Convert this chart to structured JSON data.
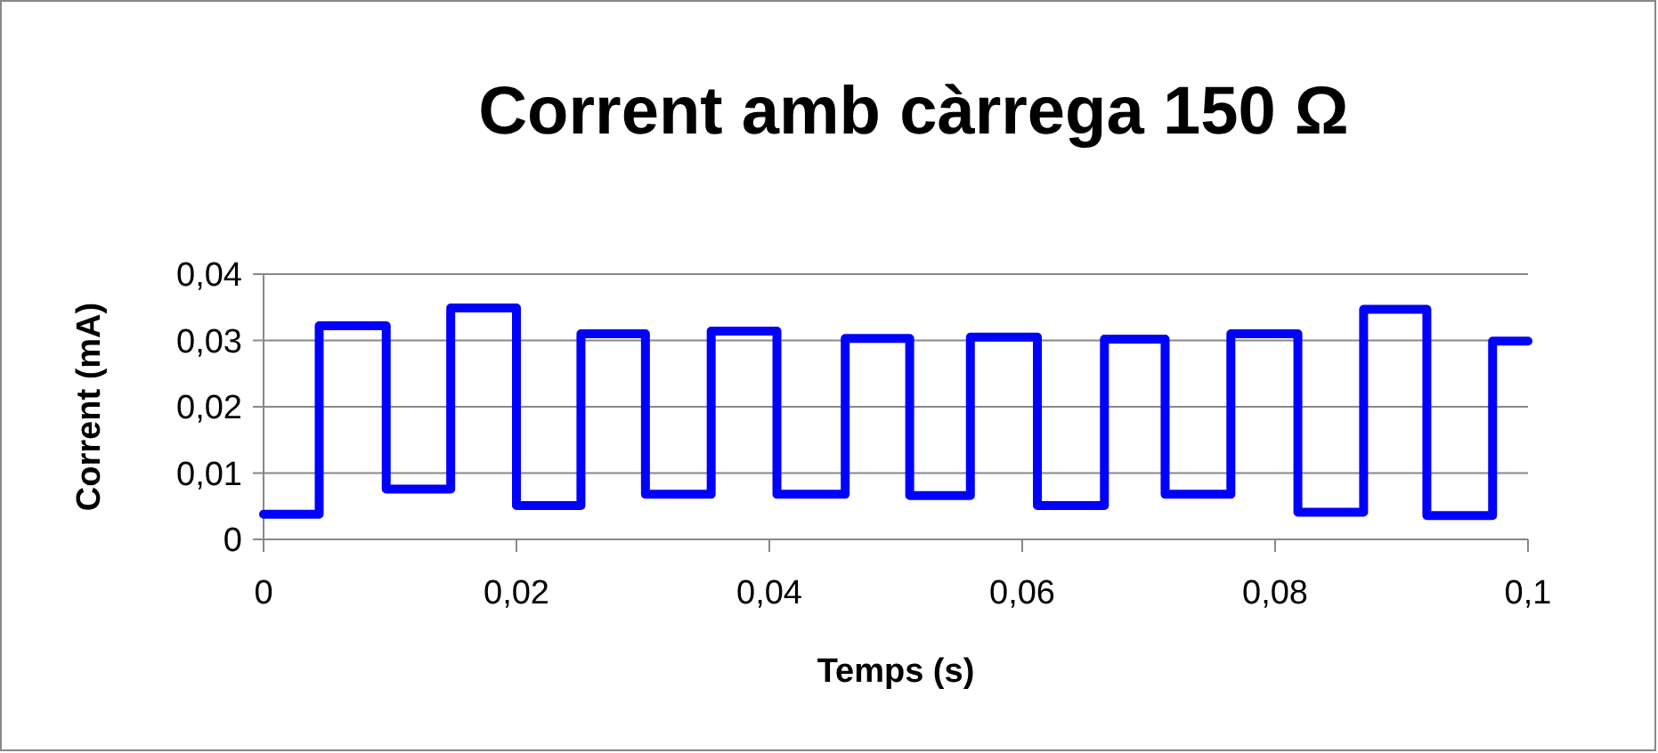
{
  "chart_data": {
    "type": "step",
    "title": "Corrent amb càrrega 150 Ω",
    "xlabel": "Temps (s)",
    "ylabel": "Corrent (mA)",
    "x": [
      0,
      0.0044,
      0.0097,
      0.0148,
      0.02,
      0.0251,
      0.0302,
      0.0354,
      0.0406,
      0.046,
      0.0511,
      0.0559,
      0.0612,
      0.0665,
      0.0713,
      0.0765,
      0.0818,
      0.087,
      0.092,
      0.0972,
      0.1
    ],
    "series": [
      {
        "color": "#0000ff",
        "values": [
          0.0038,
          0.0322,
          0.0076,
          0.0349,
          0.0051,
          0.031,
          0.0068,
          0.0314,
          0.0068,
          0.0303,
          0.0066,
          0.0305,
          0.0051,
          0.0302,
          0.0068,
          0.031,
          0.0041,
          0.0347,
          0.0036,
          0.0299,
          0.0299
        ]
      }
    ],
    "xlim": [
      0,
      0.1
    ],
    "xticks": [
      0,
      {
        "value": 0.02,
        "label": "0,02"
      },
      {
        "value": 0.04,
        "label": "0,04"
      },
      {
        "value": 0.06,
        "label": "0,06"
      },
      {
        "value": 0.08,
        "label": "0,08"
      },
      {
        "value": 0.1,
        "label": "0,1"
      }
    ],
    "ylim": [
      0,
      0.04
    ],
    "yticks": [
      0,
      {
        "value": 0.01,
        "label": "0,01"
      },
      {
        "value": 0.02,
        "label": "0,02"
      },
      {
        "value": 0.03,
        "label": "0,03"
      },
      {
        "value": 0.04,
        "label": "0,04"
      }
    ],
    "grid": "y"
  }
}
